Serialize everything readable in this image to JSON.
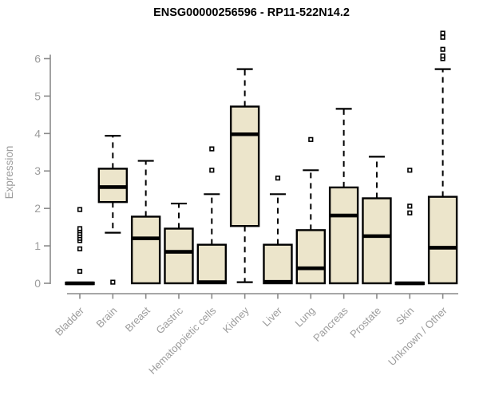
{
  "colors": {
    "box_fill": "#ECE5CB",
    "box_stroke": "#000000",
    "median": "#000000",
    "whisker": "#000000",
    "axis": "#8A8A8A",
    "tick_label": "#9C9C9C",
    "title": "#000000"
  },
  "chart_data": {
    "type": "boxplot",
    "title": "ENSG00000256596 - RP11-522N14.2",
    "ylabel": "Expression",
    "xlabel": "",
    "ylim": [
      0,
      6.8
    ],
    "yticks": [
      0,
      1,
      2,
      3,
      4,
      5,
      6
    ],
    "grid": false,
    "legend": "none",
    "categories": [
      "Bladder",
      "Brain",
      "Breast",
      "Gastric",
      "Hematopoietic cells",
      "Kidney",
      "Liver",
      "Lung",
      "Pancreas",
      "Prostate",
      "Skin",
      "Unknown / Other"
    ],
    "series": [
      {
        "label": "Bladder",
        "whislo": 0,
        "q1": 0,
        "med": 0,
        "q3": 0.02,
        "whishi": 0.02,
        "outliers": [
          0.32,
          0.92,
          1.14,
          1.2,
          1.27,
          1.33,
          1.4,
          1.46,
          1.97
        ]
      },
      {
        "label": "Brain",
        "whislo": 1.35,
        "q1": 2.17,
        "med": 2.57,
        "q3": 3.06,
        "whishi": 3.94,
        "outliers": [
          0.03
        ]
      },
      {
        "label": "Breast",
        "whislo": 0,
        "q1": 0,
        "med": 1.2,
        "q3": 1.78,
        "whishi": 3.27,
        "outliers": []
      },
      {
        "label": "Gastric",
        "whislo": 0,
        "q1": 0,
        "med": 0.84,
        "q3": 1.46,
        "whishi": 2.13,
        "outliers": []
      },
      {
        "label": "Hematopoietic cells",
        "whislo": 0,
        "q1": 0,
        "med": 0.03,
        "q3": 1.03,
        "whishi": 2.38,
        "outliers": [
          3.02,
          3.59
        ]
      },
      {
        "label": "Kidney",
        "whislo": 0.03,
        "q1": 1.53,
        "med": 3.98,
        "q3": 4.72,
        "whishi": 5.72,
        "outliers": []
      },
      {
        "label": "Liver",
        "whislo": 0,
        "q1": 0,
        "med": 0.04,
        "q3": 1.03,
        "whishi": 2.38,
        "outliers": [
          2.81
        ]
      },
      {
        "label": "Lung",
        "whislo": 0,
        "q1": 0,
        "med": 0.4,
        "q3": 1.42,
        "whishi": 3.02,
        "outliers": [
          3.84
        ]
      },
      {
        "label": "Pancreas",
        "whislo": 0,
        "q1": 0,
        "med": 1.81,
        "q3": 2.56,
        "whishi": 4.66,
        "outliers": []
      },
      {
        "label": "Prostate",
        "whislo": 0,
        "q1": 0,
        "med": 1.26,
        "q3": 2.27,
        "whishi": 3.38,
        "outliers": []
      },
      {
        "label": "Skin",
        "whislo": 0,
        "q1": 0,
        "med": 0,
        "q3": 0.02,
        "whishi": 0.02,
        "outliers": [
          1.88,
          2.06,
          3.02
        ]
      },
      {
        "label": "Unknown / Other",
        "whislo": 0,
        "q1": 0,
        "med": 0.95,
        "q3": 2.31,
        "whishi": 5.72,
        "outliers": [
          6.0,
          6.07,
          6.25,
          6.57,
          6.68
        ]
      }
    ]
  }
}
